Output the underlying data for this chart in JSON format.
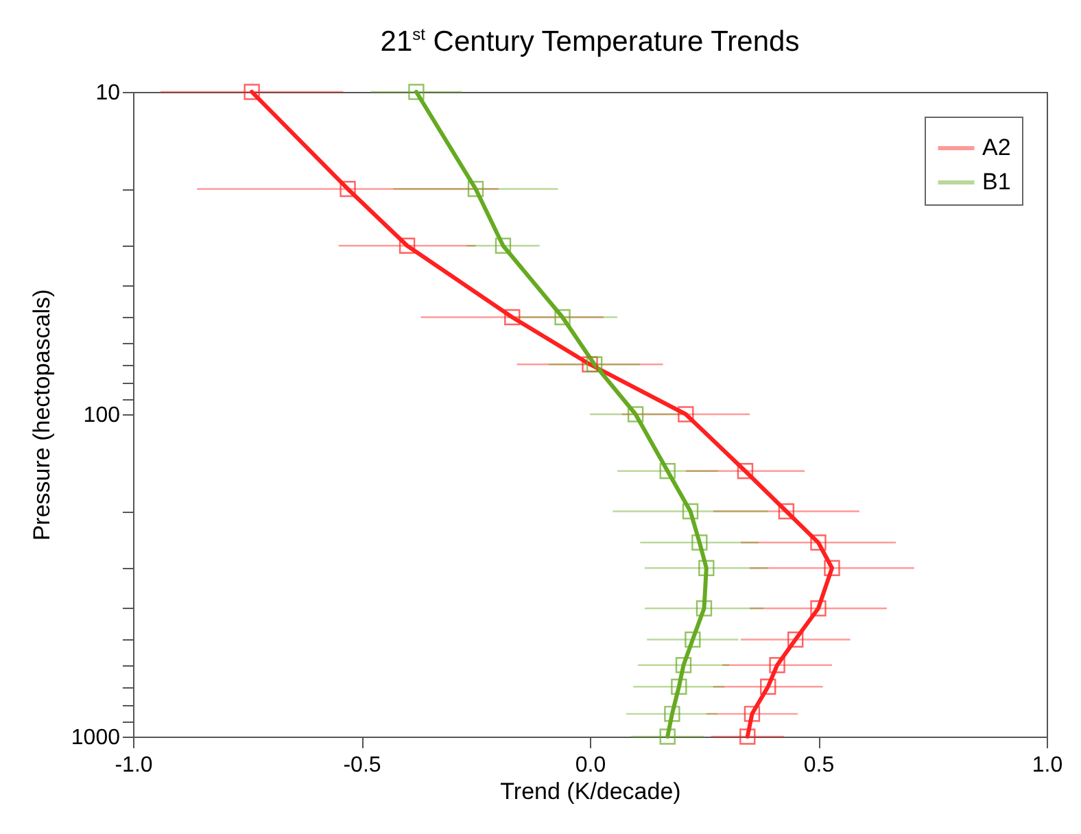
{
  "chart_data": {
    "type": "line",
    "title": "21$^{st}$ Century Temperature Trends",
    "xlabel": "Trend (K/decade)",
    "ylabel": "Pressure (hectopascals)",
    "xlim": [
      -1,
      1
    ],
    "xticks": [
      {
        "value": -1,
        "label": "-1.0"
      },
      {
        "value": -0.5,
        "label": "-0.5"
      },
      {
        "value": 0,
        "label": "0.0"
      },
      {
        "value": 0.5,
        "label": "0.5"
      },
      {
        "value": 1,
        "label": "1.0"
      }
    ],
    "ylim": [
      1000,
      10
    ],
    "yticks": [
      10,
      {
        "value": 20,
        "label": null
      },
      {
        "value": 30,
        "label": null
      },
      {
        "value": 40,
        "label": null
      },
      {
        "value": 50,
        "label": null
      },
      {
        "value": 60,
        "label": null
      },
      {
        "value": 70,
        "label": null
      },
      {
        "value": 80,
        "label": null
      },
      {
        "value": 90,
        "label": null
      },
      100,
      {
        "value": 200,
        "label": null
      },
      {
        "value": 300,
        "label": null
      },
      {
        "value": 400,
        "label": null
      },
      {
        "value": 500,
        "label": null
      },
      {
        "value": 600,
        "label": null
      },
      {
        "value": 700,
        "label": null
      },
      {
        "value": 800,
        "label": null
      },
      {
        "value": 900,
        "label": null
      },
      1000
    ],
    "log": "y",
    "grid": false,
    "legend": "top right",
    "marker": "square",
    "line_style": "solid",
    "series": [
      {
        "name": "A2",
        "color": "#ff2020",
        "x": [
          -0.74,
          -0.53,
          -0.4,
          -0.17,
          0.0,
          0.21,
          0.34,
          0.43,
          0.5,
          0.53,
          0.5,
          0.45,
          0.41,
          0.39,
          0.355,
          0.345
        ],
        "values": [
          10,
          20,
          30,
          50,
          70,
          100,
          150,
          200,
          250,
          300,
          400,
          500,
          600,
          700,
          850,
          1000
        ],
        "xerrors": [
          0.2,
          0.33,
          0.15,
          0.2,
          0.16,
          0.14,
          0.13,
          0.16,
          0.17,
          0.18,
          0.15,
          0.12,
          0.12,
          0.12,
          0.1,
          0.08
        ]
      },
      {
        "name": "B1",
        "color": "#66aa22",
        "x": [
          -0.38,
          -0.25,
          -0.19,
          -0.06,
          0.01,
          0.1,
          0.17,
          0.22,
          0.24,
          0.255,
          0.25,
          0.225,
          0.205,
          0.195,
          0.18,
          0.17
        ],
        "values": [
          10,
          20,
          30,
          50,
          70,
          100,
          150,
          200,
          250,
          300,
          400,
          500,
          600,
          700,
          850,
          1000
        ],
        "xerrors": [
          0.1,
          0.18,
          0.08,
          0.12,
          0.1,
          0.1,
          0.11,
          0.17,
          0.13,
          0.135,
          0.13,
          0.1,
          0.1,
          0.1,
          0.1,
          0.08
        ]
      }
    ]
  }
}
